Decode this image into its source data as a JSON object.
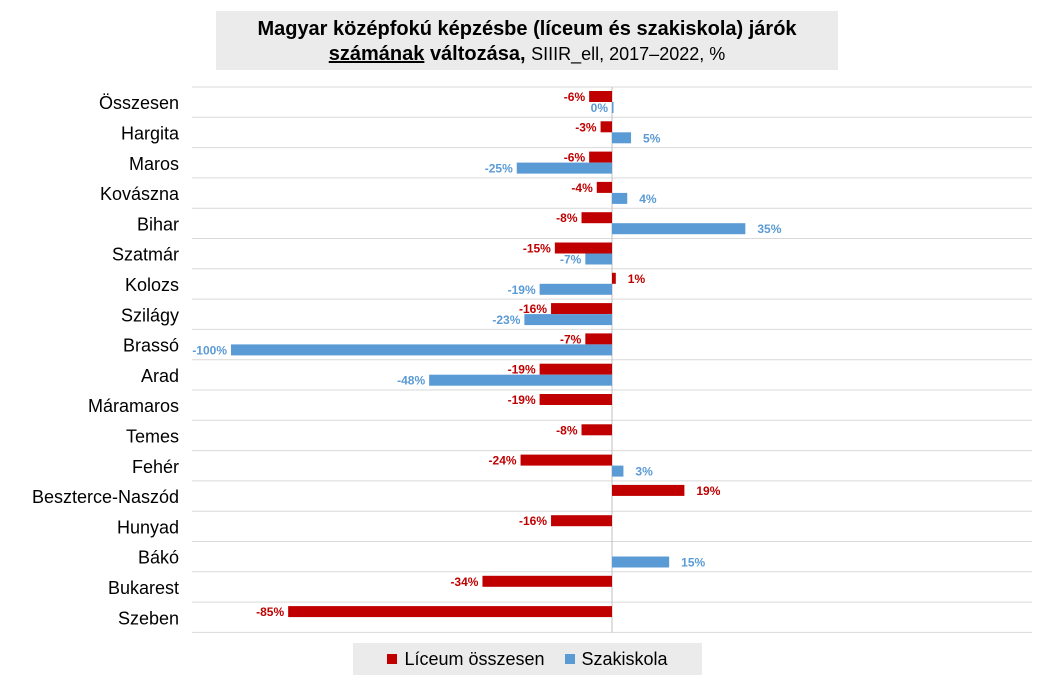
{
  "chart_data": {
    "type": "bar",
    "orientation": "horizontal",
    "title_line1": "Magyar középfokú képzésbe (líceum és szakiskola) járók",
    "title_part_underlined": "számának",
    "title_part_bold": "változása,",
    "title_part_normal": "SIIIR_ell, 2017–2022, %",
    "categories": [
      "Összesen",
      "Hargita",
      "Maros",
      "Kovászna",
      "Bihar",
      "Szatmár",
      "Kolozs",
      "Szilágy",
      "Brassó",
      "Arad",
      "Máramaros",
      "Temes",
      "Fehér",
      "Beszterce-Naszód",
      "Hunyad",
      "Bákó",
      "Bukarest",
      "Szeben"
    ],
    "series": [
      {
        "name": "Líceum összesen",
        "color": "#c00000",
        "values": [
          -6,
          -3,
          -6,
          -4,
          -8,
          -15,
          1,
          -16,
          -7,
          -19,
          -19,
          -8,
          -24,
          19,
          -16,
          null,
          -34,
          -85
        ],
        "labels": [
          "-6%",
          "-3%",
          "-6%",
          "-4%",
          "-8%",
          "-15%",
          "1%",
          "-16%",
          "-7%",
          "-19%",
          "-19%",
          "-8%",
          "-24%",
          "19%",
          "-16%",
          "",
          "-34%",
          "-85%"
        ]
      },
      {
        "name": "Szakiskola",
        "color": "#5b9bd5",
        "values": [
          0,
          5,
          -25,
          4,
          35,
          -7,
          -19,
          -23,
          -100,
          -48,
          null,
          null,
          3,
          null,
          null,
          15,
          null,
          null
        ],
        "labels": [
          "0%",
          "5%",
          "-25%",
          "4%",
          "35%",
          "-7%",
          "-19%",
          "-23%",
          "-100%",
          "-48%",
          "",
          "",
          "3%",
          "",
          "",
          "15%",
          "",
          ""
        ]
      }
    ],
    "xlim": [
      -100,
      50
    ],
    "grid": "horizontal",
    "legend_position": "bottom"
  }
}
